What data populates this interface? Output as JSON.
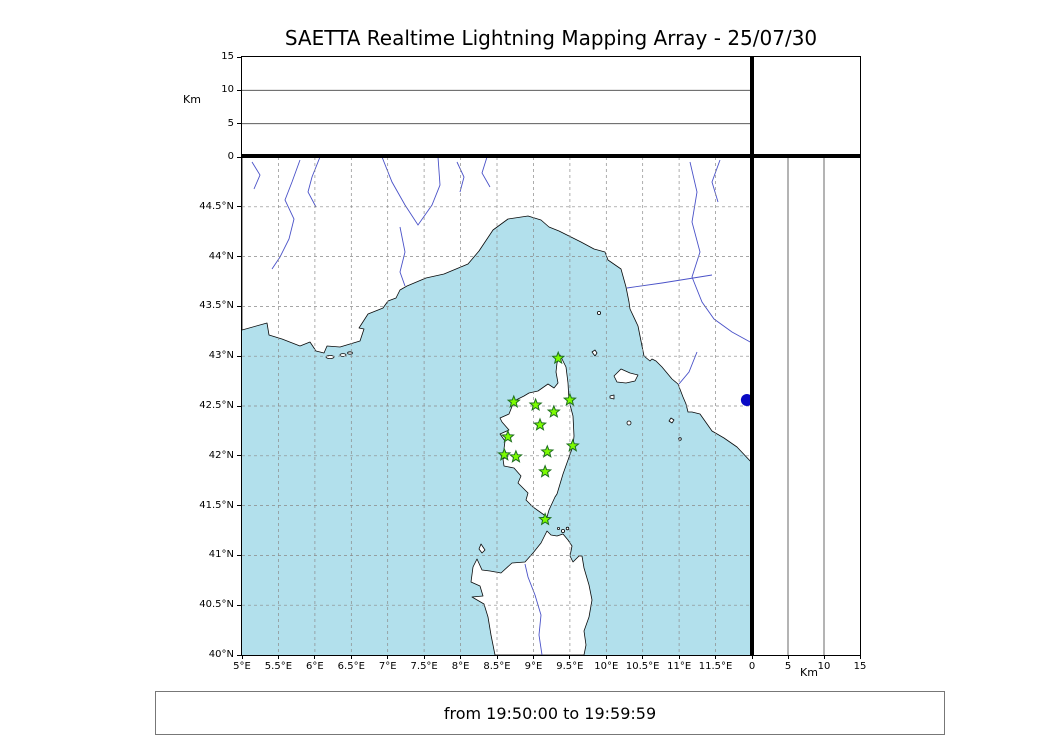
{
  "title": "SAETTA Realtime Lightning Mapping Array - 25/07/30",
  "status_bar": {
    "text": "from 19:50:00 to 19:59:59"
  },
  "axis_labels": {
    "alt_top": "Km",
    "alt_right": "Km"
  },
  "colors": {
    "sea": "#b2e0ec",
    "land": "#ffffff",
    "coast": "#0a0a0a",
    "river": "#4a52c8",
    "grid": "#8a8a8a",
    "panel_grid": "#444444",
    "station_fill": "#7cfc00",
    "station_edge": "#1f6f1f",
    "detection": "#0909c4"
  },
  "chart_data": {
    "type": "scatter",
    "title": "SAETTA Realtime Lightning Mapping Array - 25/07/30",
    "time_window": "from 19:50:00 to 19:59:59",
    "map_extent": {
      "lon_min": 5.0,
      "lon_max": 12.0,
      "lat_min": 40.0,
      "lat_max": 45.0
    },
    "grid_step_deg": 0.5,
    "grid_style": "dashed",
    "lon_ticks": [
      {
        "value": 5.0,
        "label": "5°E"
      },
      {
        "value": 5.5,
        "label": "5.5°E"
      },
      {
        "value": 6.0,
        "label": "6°E"
      },
      {
        "value": 6.5,
        "label": "6.5°E"
      },
      {
        "value": 7.0,
        "label": "7°E"
      },
      {
        "value": 7.5,
        "label": "7.5°E"
      },
      {
        "value": 8.0,
        "label": "8°E"
      },
      {
        "value": 8.5,
        "label": "8.5°E"
      },
      {
        "value": 9.0,
        "label": "9°E"
      },
      {
        "value": 9.5,
        "label": "9.5°E"
      },
      {
        "value": 10.0,
        "label": "10°E"
      },
      {
        "value": 10.5,
        "label": "10.5°E"
      },
      {
        "value": 11.0,
        "label": "11°E"
      },
      {
        "value": 11.5,
        "label": "11.5°E"
      }
    ],
    "lat_ticks": [
      {
        "value": 40.0,
        "label": "40°N"
      },
      {
        "value": 40.5,
        "label": "40.5°N"
      },
      {
        "value": 41.0,
        "label": "41°N"
      },
      {
        "value": 41.5,
        "label": "41.5°N"
      },
      {
        "value": 42.0,
        "label": "42°N"
      },
      {
        "value": 42.5,
        "label": "42.5°N"
      },
      {
        "value": 43.0,
        "label": "43°N"
      },
      {
        "value": 43.5,
        "label": "43.5°N"
      },
      {
        "value": 44.0,
        "label": "44°N"
      },
      {
        "value": 44.5,
        "label": "44.5°N"
      }
    ],
    "altitude_axis": {
      "label": "Km",
      "min": 0,
      "max": 15,
      "ticks": [
        {
          "value": 0,
          "label": "0"
        },
        {
          "value": 5,
          "label": "5"
        },
        {
          "value": 10,
          "label": "10"
        },
        {
          "value": 15,
          "label": "15"
        }
      ],
      "gridlines": [
        5,
        10
      ]
    },
    "series": [
      {
        "name": "lma_stations",
        "marker": "star",
        "fill": "#7cfc00",
        "edge": "#1f6f1f",
        "points": [
          {
            "lon": 9.34,
            "lat": 42.98
          },
          {
            "lon": 8.73,
            "lat": 42.54
          },
          {
            "lon": 9.03,
            "lat": 42.51
          },
          {
            "lon": 9.5,
            "lat": 42.56
          },
          {
            "lon": 9.28,
            "lat": 42.44
          },
          {
            "lon": 9.09,
            "lat": 42.31
          },
          {
            "lon": 8.65,
            "lat": 42.19
          },
          {
            "lon": 9.54,
            "lat": 42.1
          },
          {
            "lon": 8.6,
            "lat": 42.01
          },
          {
            "lon": 8.76,
            "lat": 41.99
          },
          {
            "lon": 9.19,
            "lat": 42.04
          },
          {
            "lon": 9.16,
            "lat": 41.84
          },
          {
            "lon": 9.16,
            "lat": 41.36
          }
        ]
      },
      {
        "name": "lightning_detections",
        "marker": "circle",
        "fill": "#0909c4",
        "points": [
          {
            "lon": 11.93,
            "lat": 42.56
          }
        ]
      }
    ]
  }
}
